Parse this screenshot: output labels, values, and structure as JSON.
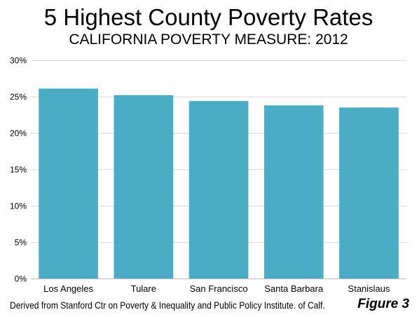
{
  "chart_data": {
    "type": "bar",
    "title": "5 Highest County Poverty Rates",
    "subtitle": "CALIFORNIA POVERTY MEASURE: 2012",
    "categories": [
      "Los Angeles",
      "Tulare",
      "San Francisco",
      "Santa Barbara",
      "Stanislaus"
    ],
    "values": [
      26.1,
      25.2,
      24.4,
      23.8,
      23.5
    ],
    "value_unit": "%",
    "ylim": [
      0,
      30
    ],
    "yticks": [
      0,
      5,
      10,
      15,
      20,
      25,
      30
    ],
    "ytick_labels": [
      "0%",
      "5%",
      "10%",
      "15%",
      "20%",
      "25%",
      "30%"
    ],
    "xlabel": "",
    "ylabel": "",
    "grid": true,
    "legend": "none",
    "bar_color": "#4bacc6",
    "grid_color": "#d9d9d9"
  },
  "footer": {
    "source": "Derived from Stanford Ctr on Poverty & Inequality and Public Policy Institute. of Calf.",
    "figure_label": "Figure 3"
  }
}
